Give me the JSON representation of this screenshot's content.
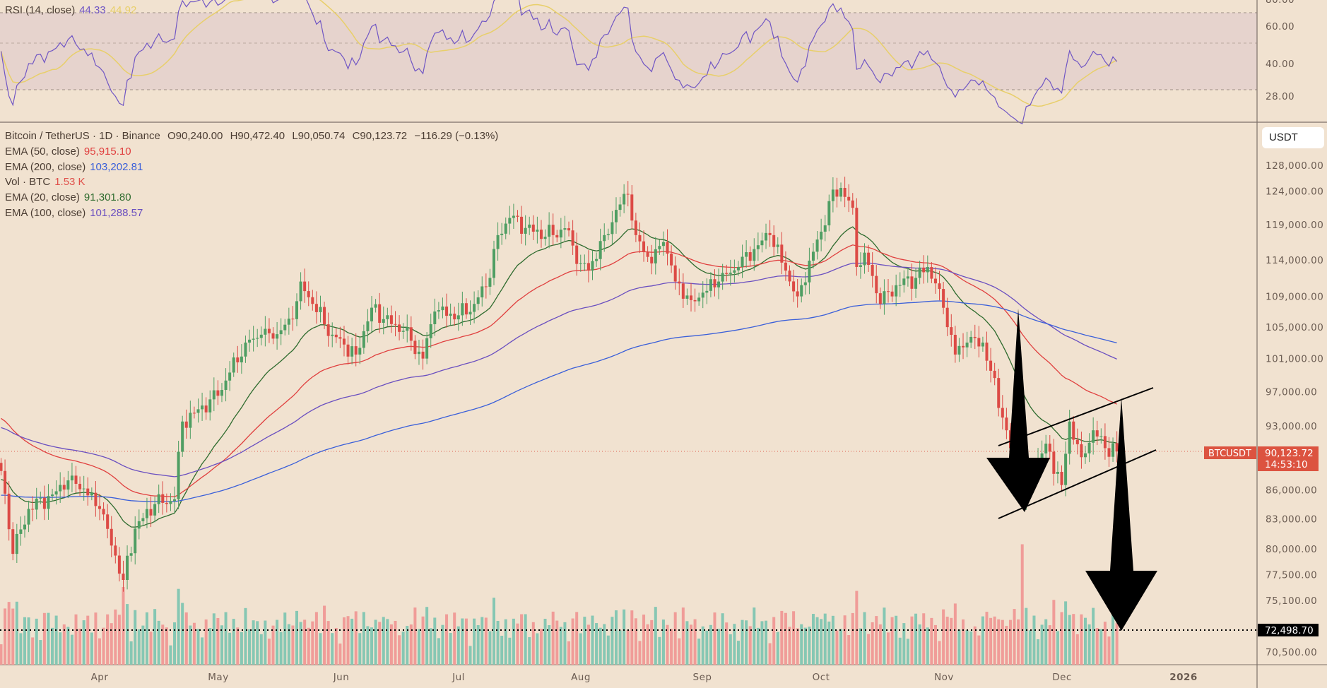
{
  "rsi_panel": {
    "label": "RSI (14, close)",
    "value": "44.33",
    "sma_value": "44.92",
    "ticks": [
      "80.00",
      "60.00",
      "40.00",
      "28.00"
    ]
  },
  "header": {
    "symbol": "Bitcoin / TetherUS · 1D · Binance",
    "open": "O90,240.00",
    "high": "H90,472.40",
    "low": "L90,050.74",
    "close": "C90,123.72",
    "change": "−116.29 (−0.13%)"
  },
  "indicators": [
    {
      "label": "EMA (50, close)",
      "value": "95,915.10",
      "color": "#e0403f"
    },
    {
      "label": "EMA (200, close)",
      "value": "103,202.81",
      "color": "#3a5fd9"
    },
    {
      "label": "Vol · BTC",
      "value": "1.53 K",
      "color": "#e0504a"
    },
    {
      "label": "EMA (20, close)",
      "value": "91,301.80",
      "color": "#2e6b2e"
    },
    {
      "label": "EMA (100, close)",
      "value": "101,288.57",
      "color": "#6a4fc0"
    }
  ],
  "price_axis": {
    "currency": "USDT",
    "ticks": [
      "128,000.00",
      "124,000.00",
      "119,000.00",
      "114,000.00",
      "109,000.00",
      "105,000.00",
      "101,000.00",
      "97,000.00",
      "93,000.00",
      "86,000.00",
      "83,000.00",
      "80,000.00",
      "77,500.00",
      "75,100.00",
      "70,500.00"
    ],
    "last_price_symbol": "BTCUSDT",
    "last_price": "90,123.72",
    "countdown": "14:53:10",
    "target_level": "72,498.70"
  },
  "time_axis": {
    "labels": [
      "Apr",
      "May",
      "Jun",
      "Jul",
      "Aug",
      "Sep",
      "Oct",
      "Nov",
      "Dec",
      "2026"
    ]
  },
  "colors": {
    "up": "#4f9e63",
    "down": "#dc4a45",
    "vol_up": "#86c7b3",
    "vol_down": "#f09c98",
    "background": "#f1e2d0",
    "rsi": "#7056c4",
    "rsi_sma": "#e8cf6a"
  },
  "chart_data": {
    "type": "candlestick",
    "title": "Bitcoin / TetherUS · 1D · Binance",
    "y_scale": "log",
    "ylim": [
      69500,
      131000
    ],
    "year": 2025,
    "closes": [
      [
        "03-07",
        88000
      ],
      [
        "03-10",
        79500
      ],
      [
        "03-14",
        84000
      ],
      [
        "03-20",
        85500
      ],
      [
        "03-25",
        87500
      ],
      [
        "04-01",
        84000
      ],
      [
        "04-07",
        77000
      ],
      [
        "04-10",
        82000
      ],
      [
        "04-15",
        84500
      ],
      [
        "04-20",
        85000
      ],
      [
        "04-22",
        93500
      ],
      [
        "04-25",
        94500
      ],
      [
        "05-01",
        96500
      ],
      [
        "05-08",
        103000
      ],
      [
        "05-12",
        104000
      ],
      [
        "05-15",
        103500
      ],
      [
        "05-20",
        106000
      ],
      [
        "05-22",
        111000
      ],
      [
        "05-25",
        108000
      ],
      [
        "05-30",
        104000
      ],
      [
        "06-05",
        101500
      ],
      [
        "06-09",
        107500
      ],
      [
        "06-12",
        106000
      ],
      [
        "06-17",
        104500
      ],
      [
        "06-22",
        101000
      ],
      [
        "06-25",
        107000
      ],
      [
        "07-01",
        106500
      ],
      [
        "07-05",
        108000
      ],
      [
        "07-09",
        111500
      ],
      [
        "07-11",
        117500
      ],
      [
        "07-14",
        120000
      ],
      [
        "07-20",
        118000
      ],
      [
        "07-25",
        117500
      ],
      [
        "07-28",
        118500
      ],
      [
        "08-01",
        113500
      ],
      [
        "08-03",
        112500
      ],
      [
        "08-07",
        117500
      ],
      [
        "08-11",
        122000
      ],
      [
        "08-13",
        123500
      ],
      [
        "08-15",
        117500
      ],
      [
        "08-19",
        113500
      ],
      [
        "08-22",
        116500
      ],
      [
        "08-25",
        111000
      ],
      [
        "08-29",
        108500
      ],
      [
        "09-01",
        109500
      ],
      [
        "09-05",
        111000
      ],
      [
        "09-10",
        113000
      ],
      [
        "09-14",
        115500
      ],
      [
        "09-18",
        117500
      ],
      [
        "09-22",
        112500
      ],
      [
        "09-25",
        109000
      ],
      [
        "10-01",
        118000
      ],
      [
        "10-03",
        122500
      ],
      [
        "10-06",
        124500
      ],
      [
        "10-09",
        121500
      ],
      [
        "10-10",
        113000
      ],
      [
        "10-12",
        115000
      ],
      [
        "10-16",
        108000
      ],
      [
        "10-20",
        110500
      ],
      [
        "10-25",
        111500
      ],
      [
        "10-28",
        113000
      ],
      [
        "10-31",
        110000
      ],
      [
        "11-04",
        101500
      ],
      [
        "11-07",
        103000
      ],
      [
        "11-11",
        103000
      ],
      [
        "11-13",
        99500
      ],
      [
        "11-17",
        92500
      ],
      [
        "11-20",
        86500
      ],
      [
        "11-21",
        85000
      ],
      [
        "11-24",
        88500
      ],
      [
        "11-27",
        91000
      ],
      [
        "12-01",
        86500
      ],
      [
        "12-03",
        93500
      ],
      [
        "12-06",
        89500
      ],
      [
        "12-09",
        92500
      ],
      [
        "12-12",
        90500
      ],
      [
        "12-15",
        90123.72
      ]
    ],
    "volume_spikes": [
      [
        "04-07",
        1.0
      ],
      [
        "05-22",
        0.55
      ],
      [
        "10-10",
        0.95
      ],
      [
        "11-14",
        0.62
      ],
      [
        "11-21",
        1.55
      ]
    ]
  }
}
